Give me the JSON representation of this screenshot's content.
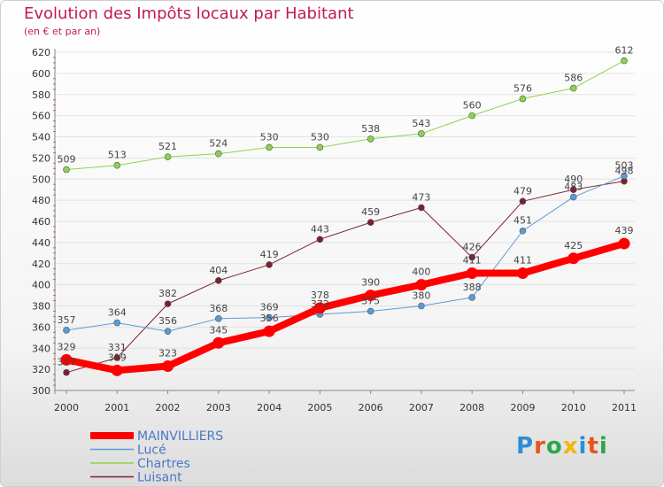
{
  "title": "Evolution des Impôts locaux par Habitant",
  "subtitle": "(en € et par an)",
  "logo": {
    "text": "Proxiti",
    "letter_colors": [
      "#2a8fd6",
      "#e8541e",
      "#2ba84a",
      "#f2b705",
      "#2a8fd6",
      "#e8541e",
      "#2ba84a"
    ]
  },
  "chart_data": {
    "type": "line",
    "title": "Evolution des Impôts locaux par Habitant",
    "subtitle": "(en € et par an)",
    "xlabel": "",
    "ylabel": "",
    "x": [
      "2000",
      "2001",
      "2002",
      "2003",
      "2004",
      "2005",
      "2006",
      "2007",
      "2008",
      "2009",
      "2010",
      "2011"
    ],
    "ylim": [
      300,
      620
    ],
    "yticks": [
      300,
      320,
      340,
      360,
      380,
      400,
      420,
      440,
      460,
      480,
      500,
      520,
      540,
      560,
      580,
      600,
      620
    ],
    "grid": "horizontal",
    "legend_position": "bottom-left",
    "series": [
      {
        "name": "Chartres",
        "color": "#8fd14f",
        "line_width": 1,
        "marker_radius": 3.5,
        "values": [
          509,
          513,
          521,
          524,
          530,
          530,
          538,
          543,
          560,
          576,
          586,
          612
        ]
      },
      {
        "name": "Luisant",
        "color": "#7a2030",
        "line_width": 1,
        "marker_radius": 3.5,
        "values": [
          317,
          331,
          382,
          404,
          419,
          443,
          459,
          473,
          426,
          479,
          490,
          498
        ]
      },
      {
        "name": "Lucé",
        "color": "#5b9bd5",
        "line_width": 1,
        "marker_radius": 3.5,
        "values": [
          357,
          364,
          356,
          368,
          369,
          372,
          375,
          380,
          388,
          451,
          483,
          503
        ]
      },
      {
        "name": "MAINVILLIERS",
        "color": "#ff0000",
        "line_width": 8,
        "marker_radius": 6.5,
        "values": [
          329,
          319,
          323,
          345,
          356,
          378,
          390,
          400,
          411,
          411,
          425,
          439
        ]
      }
    ],
    "legend_order": [
      "MAINVILLIERS",
      "Lucé",
      "Chartres",
      "Luisant"
    ]
  }
}
